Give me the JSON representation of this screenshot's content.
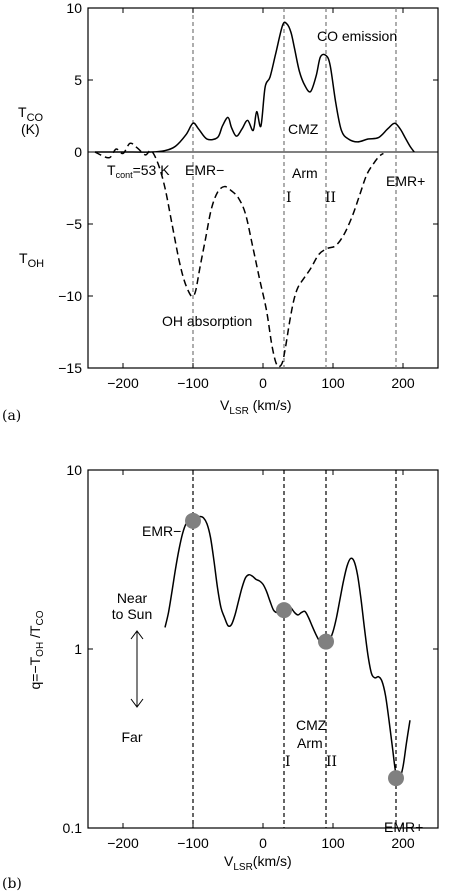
{
  "chart_data": [
    {
      "type": "line",
      "panel_label": "(a)",
      "xlabel_main": "V",
      "xlabel_sub": "LSR",
      "xlabel_unit": " (km/s)",
      "xlim": [
        -250,
        250
      ],
      "ylim": [
        -15,
        10
      ],
      "x_ticks": [
        -200,
        -100,
        0,
        100,
        200
      ],
      "y_ticks": [
        10,
        5,
        0,
        -5,
        -10,
        -15
      ],
      "y_tick_labels": [
        "10",
        "5",
        "0",
        "−5",
        "−10",
        "−15"
      ],
      "ylabel_top_main": "T",
      "ylabel_top_sub": "CO",
      "ylabel_top_unit": "(K)",
      "ylabel_bottom_main": "T",
      "ylabel_bottom_sub": "OH",
      "vlines": [
        -100,
        30,
        90,
        190
      ],
      "series": [
        {
          "name": "CO emission",
          "style": "solid",
          "x": [
            -240,
            -200,
            -160,
            -140,
            -125,
            -110,
            -100,
            -92,
            -80,
            -65,
            -58,
            -50,
            -45,
            -38,
            -30,
            -22,
            -14,
            -9,
            -3,
            3,
            10,
            18,
            28,
            34,
            40,
            45,
            52,
            60,
            68,
            76,
            82,
            90,
            96,
            104,
            112,
            122,
            135,
            150,
            165,
            178,
            188,
            196,
            203,
            210,
            216
          ],
          "y": [
            0,
            0,
            0,
            0.1,
            0.4,
            1.2,
            2.0,
            1.6,
            0.9,
            1.0,
            1.8,
            2.4,
            1.7,
            1.1,
            1.6,
            2.2,
            1.5,
            2.8,
            1.8,
            4.5,
            5.2,
            6.8,
            8.8,
            8.9,
            8.3,
            7.2,
            5.6,
            4.6,
            4.2,
            5.3,
            6.6,
            6.7,
            6.0,
            3.4,
            1.5,
            0.9,
            0.7,
            0.9,
            1.0,
            1.6,
            2.0,
            1.6,
            1.0,
            0.4,
            0
          ]
        },
        {
          "name": "OH absorption",
          "style": "dashed",
          "x": [
            -240,
            -220,
            -210,
            -200,
            -190,
            -180,
            -168,
            -160,
            -150,
            -140,
            -130,
            -120,
            -112,
            -104,
            -100,
            -96,
            -90,
            -82,
            -74,
            -65,
            -55,
            -45,
            -35,
            -25,
            -15,
            -5,
            5,
            13,
            20,
            27,
            32,
            38,
            44,
            50,
            58,
            68,
            80,
            92,
            104,
            116,
            128,
            138,
            148,
            158,
            166,
            172
          ],
          "y": [
            0,
            -0.4,
            0.2,
            -0.1,
            0.6,
            0.3,
            -0.2,
            0.1,
            -0.8,
            -2.5,
            -5,
            -7.5,
            -9,
            -9.9,
            -10,
            -9.6,
            -8,
            -6,
            -4,
            -2.8,
            -2.4,
            -2.7,
            -3.2,
            -4.3,
            -6.5,
            -8.8,
            -11,
            -13.5,
            -14.8,
            -14.7,
            -13.6,
            -11.8,
            -10.3,
            -9.4,
            -8.8,
            -8.1,
            -7.1,
            -6.7,
            -6.5,
            -5.7,
            -4.4,
            -3.0,
            -1.6,
            -0.8,
            -0.3,
            -0.1
          ]
        }
      ],
      "annotations": {
        "co_emission": "CO emission",
        "cmz": "CMZ",
        "t_cont_main": "T",
        "t_cont_sub": "cont",
        "t_cont_val": "=53 K",
        "emr_minus": "EMR−",
        "arm": "Arm",
        "emr_plus": "EMR+",
        "arm_i": "I",
        "arm_ii": "II",
        "oh_absorption": "OH absorption"
      }
    },
    {
      "type": "line",
      "panel_label": "(b)",
      "yscale": "log",
      "xlabel_main": "V",
      "xlabel_sub": "LSR",
      "xlabel_unit": "(km/s)",
      "xlim": [
        -250,
        250
      ],
      "ylim": [
        0.1,
        10
      ],
      "x_ticks": [
        -200,
        -100,
        0,
        100,
        200
      ],
      "y_ticks": [
        10,
        1,
        0.1
      ],
      "y_tick_labels": [
        "10",
        "1",
        "0.1"
      ],
      "ylabel_parts": [
        "q=−T",
        "OH",
        " /T",
        "CO"
      ],
      "vlines": [
        -100,
        30,
        90,
        190
      ],
      "series": [
        {
          "name": "q",
          "style": "solid",
          "x": [
            -140,
            -135,
            -130,
            -125,
            -120,
            -115,
            -110,
            -105,
            -100,
            -95,
            -90,
            -85,
            -80,
            -75,
            -70,
            -65,
            -60,
            -55,
            -50,
            -45,
            -40,
            -35,
            -30,
            -25,
            -20,
            -15,
            -10,
            -5,
            0,
            5,
            10,
            15,
            20,
            25,
            30,
            35,
            40,
            45,
            50,
            55,
            60,
            65,
            70,
            75,
            80,
            85,
            90,
            95,
            100,
            105,
            110,
            115,
            120,
            125,
            130,
            135,
            140,
            145,
            150,
            155,
            160,
            165,
            170,
            175,
            180,
            185,
            190,
            195,
            200,
            205,
            210
          ],
          "y": [
            1.32,
            1.6,
            2.1,
            2.8,
            3.6,
            4.4,
            5.0,
            5.2,
            5.2,
            5.4,
            5.5,
            5.4,
            5.0,
            4.2,
            3.1,
            2.2,
            1.7,
            1.5,
            1.35,
            1.37,
            1.55,
            1.85,
            2.2,
            2.5,
            2.6,
            2.55,
            2.45,
            2.4,
            2.3,
            2.1,
            1.85,
            1.65,
            1.6,
            1.65,
            1.72,
            1.75,
            1.7,
            1.6,
            1.55,
            1.6,
            1.62,
            1.5,
            1.35,
            1.22,
            1.12,
            1.08,
            1.08,
            1.12,
            1.25,
            1.5,
            1.9,
            2.4,
            2.9,
            3.2,
            3.1,
            2.6,
            1.9,
            1.3,
            0.92,
            0.73,
            0.69,
            0.7,
            0.66,
            0.55,
            0.4,
            0.28,
            0.2,
            0.19,
            0.22,
            0.3,
            0.4
          ]
        }
      ],
      "points": {
        "x": [
          -100,
          30,
          90,
          190
        ],
        "y": [
          5.2,
          1.65,
          1.1,
          0.19
        ]
      },
      "annotations": {
        "emr_minus": "EMR−",
        "near_line1": "Near",
        "near_line2": "to Sun",
        "far": "Far",
        "cmz": "CMZ",
        "arm": "Arm",
        "arm_i": "I",
        "arm_ii": "II",
        "emr_plus": "EMR+"
      }
    }
  ]
}
